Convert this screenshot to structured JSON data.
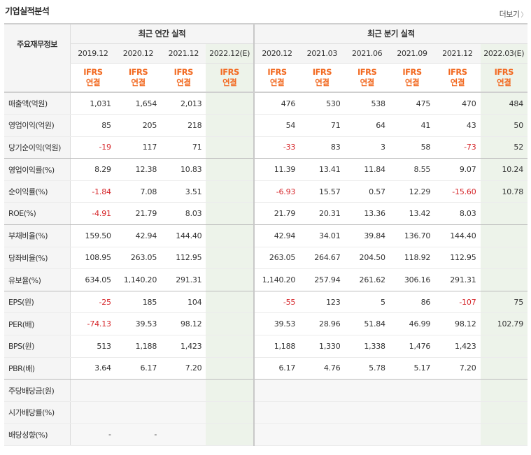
{
  "title": "기업실적분석",
  "more_label": "더보기",
  "header": {
    "label_col": "주요재무정보",
    "annual_group": "최근 연간 실적",
    "quarter_group": "최근 분기 실적",
    "periods": [
      "2019.12",
      "2020.12",
      "2021.12",
      "2022.12(E)",
      "2020.12",
      "2021.03",
      "2021.06",
      "2021.09",
      "2021.12",
      "2022.03(E)"
    ],
    "ifrs_top": "IFRS",
    "ifrs_bottom": "연결"
  },
  "rows": [
    {
      "label": "매출액(억원)",
      "values": [
        "1,031",
        "1,654",
        "2,013",
        "",
        "476",
        "530",
        "538",
        "475",
        "470",
        "484"
      ]
    },
    {
      "label": "영업이익(억원)",
      "values": [
        "85",
        "205",
        "218",
        "",
        "54",
        "71",
        "64",
        "41",
        "43",
        "50"
      ]
    },
    {
      "label": "당기순이익(억원)",
      "values": [
        "-19",
        "117",
        "71",
        "",
        "-33",
        "83",
        "3",
        "58",
        "-73",
        "52"
      ]
    },
    {
      "label": "영업이익률(%)",
      "values": [
        "8.29",
        "12.38",
        "10.83",
        "",
        "11.39",
        "13.41",
        "11.84",
        "8.55",
        "9.07",
        "10.24"
      ]
    },
    {
      "label": "순이익률(%)",
      "values": [
        "-1.84",
        "7.08",
        "3.51",
        "",
        "-6.93",
        "15.57",
        "0.57",
        "12.29",
        "-15.60",
        "10.78"
      ]
    },
    {
      "label": "ROE(%)",
      "values": [
        "-4.91",
        "21.79",
        "8.03",
        "",
        "21.79",
        "20.31",
        "13.36",
        "13.42",
        "8.03",
        ""
      ]
    },
    {
      "label": "부채비율(%)",
      "values": [
        "159.50",
        "42.94",
        "144.40",
        "",
        "42.94",
        "34.01",
        "39.84",
        "136.70",
        "144.40",
        ""
      ]
    },
    {
      "label": "당좌비율(%)",
      "values": [
        "108.95",
        "263.05",
        "112.95",
        "",
        "263.05",
        "264.67",
        "204.50",
        "118.92",
        "112.95",
        ""
      ]
    },
    {
      "label": "유보율(%)",
      "values": [
        "634.05",
        "1,140.20",
        "291.31",
        "",
        "1,140.20",
        "257.94",
        "261.62",
        "306.16",
        "291.31",
        ""
      ]
    },
    {
      "label": "EPS(원)",
      "values": [
        "-25",
        "185",
        "104",
        "",
        "-55",
        "123",
        "5",
        "86",
        "-107",
        "75"
      ]
    },
    {
      "label": "PER(배)",
      "values": [
        "-74.13",
        "39.53",
        "98.12",
        "",
        "39.53",
        "28.96",
        "51.84",
        "46.99",
        "98.12",
        "102.79"
      ]
    },
    {
      "label": "BPS(원)",
      "values": [
        "513",
        "1,188",
        "1,423",
        "",
        "1,188",
        "1,330",
        "1,338",
        "1,476",
        "1,423",
        ""
      ]
    },
    {
      "label": "PBR(배)",
      "values": [
        "3.64",
        "6.17",
        "7.20",
        "",
        "6.17",
        "4.76",
        "5.78",
        "5.17",
        "7.20",
        ""
      ]
    },
    {
      "label": "주당배당금(원)",
      "values": [
        "",
        "",
        "",
        "",
        "",
        "",
        "",
        "",
        "",
        ""
      ]
    },
    {
      "label": "시가배당률(%)",
      "values": [
        "",
        "",
        "",
        "",
        "",
        "",
        "",
        "",
        "",
        ""
      ]
    },
    {
      "label": "배당성향(%)",
      "values": [
        "-",
        "-",
        "",
        "",
        "",
        "",
        "",
        "",
        "",
        ""
      ]
    }
  ],
  "colors": {
    "negative": "#d6262a",
    "ifrs_label": "#f26a22",
    "estimate_bg": "#edf3ea",
    "header_bg": "#f5f5f5"
  }
}
